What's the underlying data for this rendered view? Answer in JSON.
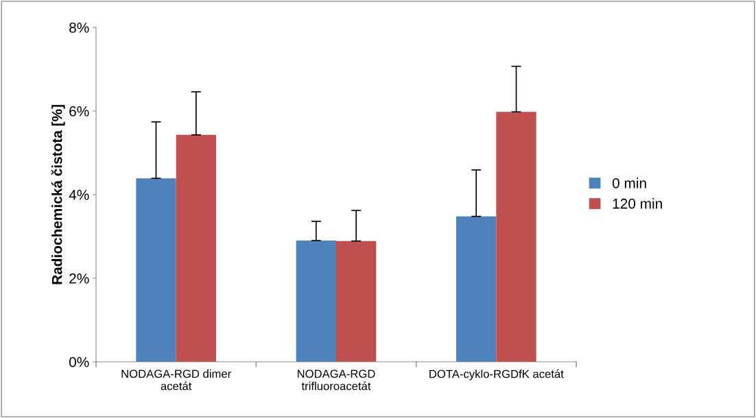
{
  "chart_data": {
    "type": "bar",
    "ylabel": "Radiochemická čistota [%]",
    "categories": [
      "NODAGA-RGD dimer\nacetát",
      "NODAGA-RGD\ntrifluoroacetát",
      "DOTA-cyklo-RGDfK acetát"
    ],
    "series": [
      {
        "name": "0 min",
        "color": "#4f81bd",
        "values": [
          4.39,
          2.9,
          3.48
        ],
        "errors": [
          [
            4.39,
            5.74
          ],
          [
            2.9,
            3.36
          ],
          [
            3.48,
            4.59
          ]
        ]
      },
      {
        "name": "120 min",
        "color": "#c0504d",
        "values": [
          5.43,
          2.89,
          5.98
        ],
        "errors": [
          [
            5.43,
            6.46
          ],
          [
            2.89,
            3.62
          ],
          [
            5.98,
            7.07
          ]
        ]
      }
    ],
    "ylim": [
      0,
      8
    ],
    "yticks": [
      {
        "value": 0,
        "label": "0%"
      },
      {
        "value": 2,
        "label": "2%"
      },
      {
        "value": 4,
        "label": "4%"
      },
      {
        "value": 6,
        "label": "6%"
      },
      {
        "value": 8,
        "label": "8%"
      }
    ],
    "grid": false,
    "legend": "right"
  }
}
